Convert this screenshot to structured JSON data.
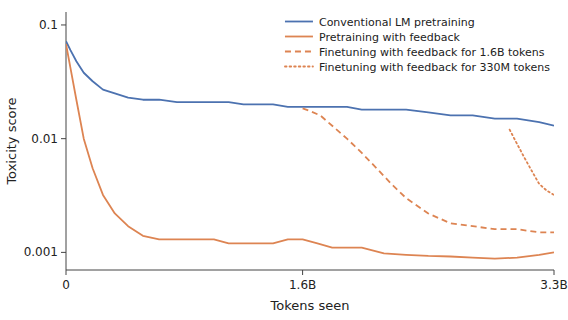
{
  "chart_data": {
    "type": "line",
    "xlabel": "Tokens seen",
    "ylabel": "Toxicity score",
    "log": "y",
    "grid": false,
    "legend": "upper right",
    "xlim": [
      0,
      3300000000
    ],
    "ylim": [
      0.0007,
      0.13
    ],
    "xticks": [
      0,
      {
        "value": 1600000000,
        "label": "1.6B"
      },
      {
        "value": 3300000000,
        "label": "3.3B"
      }
    ],
    "yticks": [
      0.001,
      0.01,
      0.1
    ],
    "series": [
      {
        "name": "Conventional LM pretraining",
        "color": "#4C72B0",
        "line_style": "solid",
        "x": [
          0,
          30000000,
          70000000,
          120000000,
          180000000,
          250000000,
          330000000,
          420000000,
          520000000,
          630000000,
          750000000,
          880000000,
          1000000000,
          1100000000,
          1200000000,
          1300000000,
          1400000000,
          1500000000,
          1600000000,
          1700000000,
          1800000000,
          1900000000,
          2000000000,
          2150000000,
          2300000000,
          2450000000,
          2600000000,
          2750000000,
          2900000000,
          3050000000,
          3200000000,
          3300000000
        ],
        "values": [
          0.072,
          0.06,
          0.048,
          0.038,
          0.032,
          0.027,
          0.025,
          0.023,
          0.022,
          0.022,
          0.021,
          0.021,
          0.021,
          0.021,
          0.02,
          0.02,
          0.02,
          0.019,
          0.019,
          0.019,
          0.019,
          0.019,
          0.018,
          0.018,
          0.018,
          0.017,
          0.016,
          0.016,
          0.015,
          0.015,
          0.014,
          0.013
        ]
      },
      {
        "name": "Pretraining with feedback",
        "color": "#DD8452",
        "line_style": "solid",
        "x": [
          0,
          30000000,
          70000000,
          120000000,
          180000000,
          250000000,
          330000000,
          420000000,
          520000000,
          630000000,
          750000000,
          880000000,
          1000000000,
          1100000000,
          1200000000,
          1300000000,
          1400000000,
          1500000000,
          1600000000,
          1700000000,
          1800000000,
          1900000000,
          2000000000,
          2150000000,
          2300000000,
          2450000000,
          2600000000,
          2750000000,
          2900000000,
          3050000000,
          3200000000,
          3300000000
        ],
        "values": [
          0.068,
          0.042,
          0.022,
          0.01,
          0.0055,
          0.0032,
          0.0022,
          0.0017,
          0.0014,
          0.0013,
          0.0013,
          0.0013,
          0.0013,
          0.0012,
          0.0012,
          0.0012,
          0.0012,
          0.0013,
          0.0013,
          0.0012,
          0.0011,
          0.0011,
          0.0011,
          0.00098,
          0.00095,
          0.00093,
          0.00092,
          0.0009,
          0.00088,
          0.0009,
          0.00095,
          0.001
        ]
      },
      {
        "name": "Finetuning with feedback for 1.6B tokens",
        "color": "#DD8452",
        "line_style": "dashed",
        "x": [
          1600000000,
          1650000000,
          1720000000,
          1800000000,
          1900000000,
          2000000000,
          2100000000,
          2200000000,
          2300000000,
          2450000000,
          2600000000,
          2750000000,
          2900000000,
          3050000000,
          3200000000,
          3300000000
        ],
        "values": [
          0.0185,
          0.0175,
          0.016,
          0.013,
          0.01,
          0.0075,
          0.0055,
          0.004,
          0.003,
          0.0022,
          0.0018,
          0.0017,
          0.0016,
          0.0016,
          0.0015,
          0.0015
        ]
      },
      {
        "name": "Finetuning with feedback for 330M tokens",
        "color": "#DD8452",
        "line_style": "dotted",
        "x": [
          3000000000,
          3050000000,
          3100000000,
          3150000000,
          3200000000,
          3250000000,
          3300000000
        ],
        "values": [
          0.012,
          0.009,
          0.0068,
          0.0052,
          0.004,
          0.0035,
          0.0032
        ]
      }
    ]
  }
}
